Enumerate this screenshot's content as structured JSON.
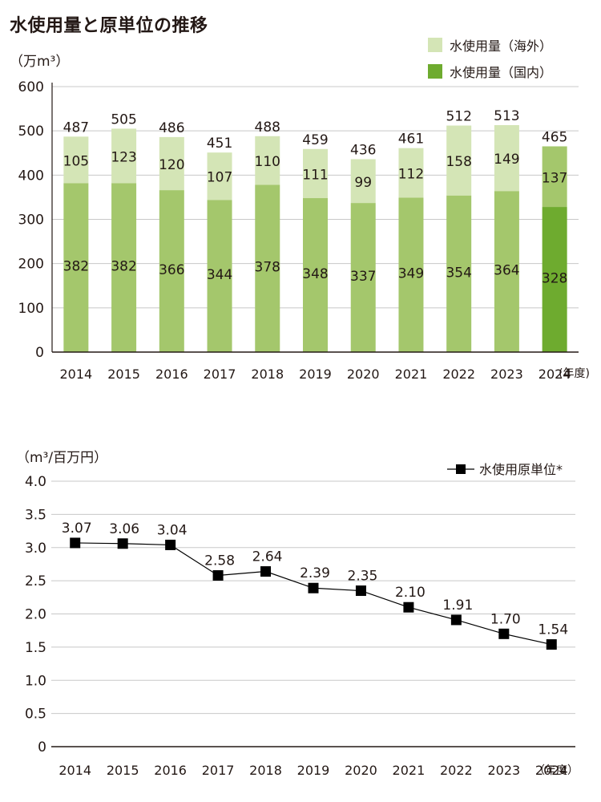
{
  "title": "水使用量と原単位の推移",
  "colors": {
    "overseas": "#a4c76c",
    "overseas_light": "#d4e5b6",
    "domestic": "#a4c76c",
    "domestic_highlight": "#6eab2f",
    "line": "#000000",
    "grid": "#c8c8c8",
    "axis": "#231815"
  },
  "chart_data": [
    {
      "type": "bar",
      "stacked": true,
      "unit_label": "（万m³）",
      "x_unit_label": "(年度)",
      "categories": [
        "2014",
        "2015",
        "2016",
        "2017",
        "2018",
        "2019",
        "2020",
        "2021",
        "2022",
        "2023",
        "2024"
      ],
      "series": [
        {
          "name": "水使用量（国内）",
          "values": [
            382,
            382,
            366,
            344,
            378,
            348,
            337,
            349,
            354,
            364,
            328
          ]
        },
        {
          "name": "水使用量（海外）",
          "values": [
            105,
            123,
            120,
            107,
            110,
            111,
            99,
            112,
            158,
            149,
            137
          ]
        }
      ],
      "totals": [
        487,
        505,
        486,
        451,
        488,
        459,
        436,
        461,
        512,
        513,
        465
      ],
      "yticks": [
        "0",
        "100",
        "200",
        "300",
        "400",
        "500",
        "600"
      ],
      "ylim": [
        0,
        600
      ],
      "grid": true,
      "legend": {
        "position": "top-right",
        "items": [
          "水使用量（海外）",
          "水使用量（国内）"
        ]
      }
    },
    {
      "type": "line",
      "unit_label": "（m³/百万円）",
      "x_unit_label": "（年度）",
      "x": [
        "2014",
        "2015",
        "2016",
        "2017",
        "2018",
        "2019",
        "2020",
        "2021",
        "2022",
        "2023",
        "2024"
      ],
      "series": [
        {
          "name": "水使用原単位*",
          "values": [
            3.07,
            3.06,
            3.04,
            2.58,
            2.64,
            2.39,
            2.35,
            2.1,
            1.91,
            1.7,
            1.54
          ],
          "labels": [
            "3.07",
            "3.06",
            "3.04",
            "2.58",
            "2.64",
            "2.39",
            "2.35",
            "2.10",
            "1.91",
            "1.70",
            "1.54"
          ]
        }
      ],
      "yticks": [
        "0",
        "0.5",
        "1.0",
        "1.5",
        "2.0",
        "2.5",
        "3.0",
        "3.5",
        "4.0"
      ],
      "ylim": [
        0,
        4.0
      ],
      "grid": true,
      "legend": {
        "position": "top-right",
        "items": [
          "水使用原単位*"
        ]
      }
    }
  ]
}
